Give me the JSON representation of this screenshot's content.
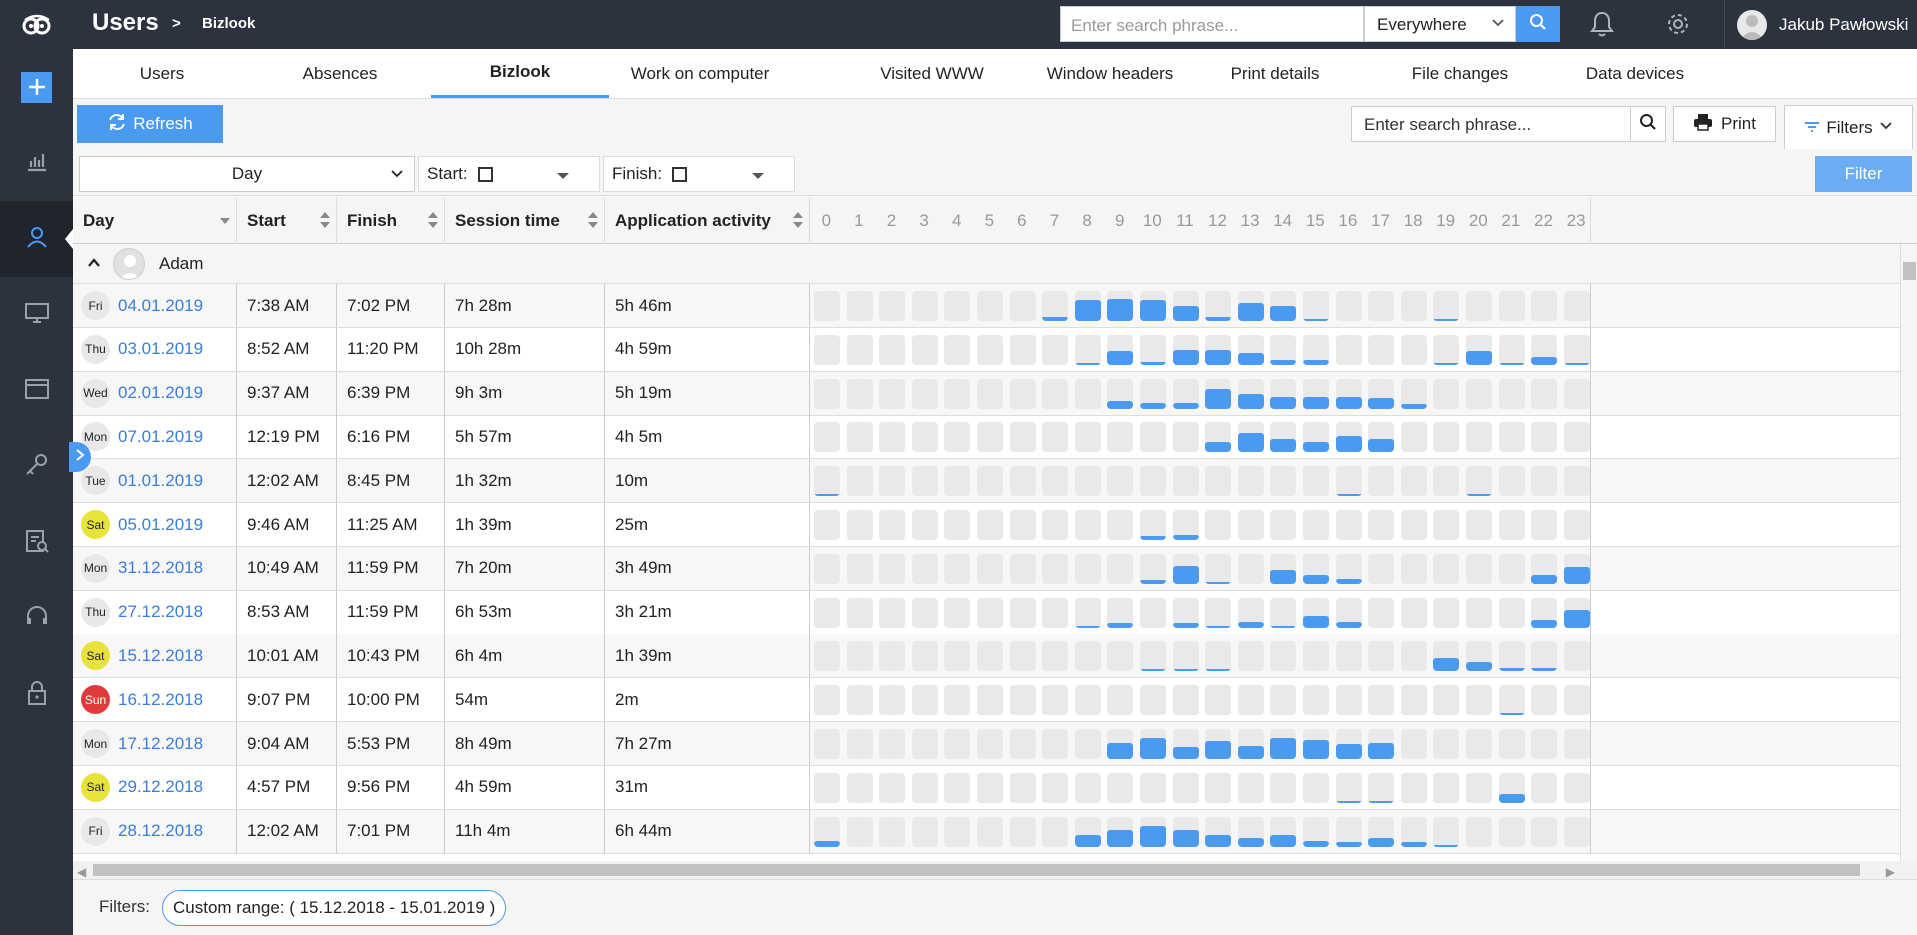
{
  "header": {
    "title": "Users",
    "breadcrumb_sep": ">",
    "breadcrumb": "Bizlook",
    "search_placeholder": "Enter search phrase...",
    "scope": "Everywhere",
    "user_name": "Jakub Pawłowski"
  },
  "sidebar": {
    "items": [
      "add-icon",
      "chart-icon",
      "user-icon",
      "monitor-icon",
      "window-icon",
      "key-icon",
      "clipboard-search-icon",
      "headset-icon",
      "lock-icon"
    ],
    "active": "user-icon"
  },
  "tabs": [
    "Users",
    "Absences",
    "Bizlook",
    "Work on computer",
    "Visited WWW",
    "Window headers",
    "Print details",
    "File changes",
    "Data devices"
  ],
  "active_tab": "Bizlook",
  "toolbar": {
    "refresh": "Refresh",
    "search_placeholder": "Enter search phrase...",
    "print": "Print",
    "filters": "Filters"
  },
  "filterbar": {
    "period": "Day",
    "start_label": "Start:",
    "finish_label": "Finish:",
    "filter": "Filter"
  },
  "grid": {
    "columns": [
      "Day",
      "Start",
      "Finish",
      "Session time",
      "Application activity"
    ],
    "hours": [
      "0",
      "1",
      "2",
      "3",
      "4",
      "5",
      "6",
      "7",
      "8",
      "9",
      "10",
      "11",
      "12",
      "13",
      "14",
      "15",
      "16",
      "17",
      "18",
      "19",
      "20",
      "21",
      "22",
      "23"
    ],
    "group": "Adam",
    "rows": [
      {
        "weekday": "Fri",
        "date": "04.01.2019",
        "start": "7:38 AM",
        "finish": "7:02 PM",
        "session": "7h 28m",
        "activity": "5h 46m",
        "weekend": "",
        "hours": [
          0,
          0,
          0,
          0,
          0,
          0,
          0,
          0.12,
          0.7,
          0.72,
          0.7,
          0.5,
          0.15,
          0.6,
          0.5,
          0.03,
          0,
          0,
          0,
          0.03,
          0,
          0,
          0,
          0
        ]
      },
      {
        "weekday": "Thu",
        "date": "03.01.2019",
        "start": "8:52 AM",
        "finish": "11:20 PM",
        "session": "10h 28m",
        "activity": "4h 59m",
        "weekend": "",
        "hours": [
          0,
          0,
          0,
          0,
          0,
          0,
          0,
          0,
          0.05,
          0.45,
          0.08,
          0.5,
          0.5,
          0.4,
          0.15,
          0.15,
          0,
          0,
          0,
          0.05,
          0.45,
          0.05,
          0.25,
          0.05
        ]
      },
      {
        "weekday": "Wed",
        "date": "02.01.2019",
        "start": "9:37 AM",
        "finish": "6:39 PM",
        "session": "9h 3m",
        "activity": "5h 19m",
        "weekend": "",
        "hours": [
          0,
          0,
          0,
          0,
          0,
          0,
          0,
          0,
          0,
          0.25,
          0.2,
          0.18,
          0.65,
          0.5,
          0.4,
          0.4,
          0.4,
          0.35,
          0.15,
          0,
          0,
          0,
          0,
          0
        ]
      },
      {
        "weekday": "Mon",
        "date": "07.01.2019",
        "start": "12:19 PM",
        "finish": "6:16 PM",
        "session": "5h 57m",
        "activity": "4h 5m",
        "weekend": "",
        "hours": [
          0,
          0,
          0,
          0,
          0,
          0,
          0,
          0,
          0,
          0,
          0,
          0,
          0.35,
          0.65,
          0.45,
          0.35,
          0.55,
          0.45,
          0,
          0,
          0,
          0,
          0,
          0
        ]
      },
      {
        "weekday": "Tue",
        "date": "01.01.2019",
        "start": "12:02 AM",
        "finish": "8:45 PM",
        "session": "1h 32m",
        "activity": "10m",
        "weekend": "",
        "hours": [
          0.05,
          0,
          0,
          0,
          0,
          0,
          0,
          0,
          0,
          0,
          0,
          0,
          0,
          0,
          0,
          0,
          0.02,
          0,
          0,
          0,
          0.03,
          0,
          0,
          0
        ]
      },
      {
        "weekday": "Sat",
        "date": "05.01.2019",
        "start": "9:46 AM",
        "finish": "11:25 AM",
        "session": "1h 39m",
        "activity": "25m",
        "weekend": "sat",
        "hours": [
          0,
          0,
          0,
          0,
          0,
          0,
          0,
          0,
          0,
          0,
          0.12,
          0.18,
          0,
          0,
          0,
          0,
          0,
          0,
          0,
          0,
          0,
          0,
          0,
          0
        ]
      },
      {
        "weekday": "Mon",
        "date": "31.12.2018",
        "start": "10:49 AM",
        "finish": "11:59 PM",
        "session": "7h 20m",
        "activity": "3h 49m",
        "weekend": "",
        "hours": [
          0,
          0,
          0,
          0,
          0,
          0,
          0,
          0,
          0,
          0,
          0.12,
          0.6,
          0.04,
          0,
          0.45,
          0.3,
          0.15,
          0,
          0,
          0,
          0,
          0,
          0.3,
          0.55
        ]
      },
      {
        "weekday": "Thu",
        "date": "27.12.2018",
        "start": "8:53 AM",
        "finish": "11:59 PM",
        "session": "6h 53m",
        "activity": "3h 21m",
        "weekend": "",
        "hours": [
          0,
          0,
          0,
          0,
          0,
          0,
          0,
          0,
          0.05,
          0.15,
          0,
          0.15,
          0.06,
          0.2,
          0.06,
          0.4,
          0.2,
          0,
          0,
          0,
          0,
          0,
          0.25,
          0.6
        ]
      },
      {
        "weekday": "Sat",
        "date": "15.12.2018",
        "start": "10:01 AM",
        "finish": "10:43 PM",
        "session": "6h 4m",
        "activity": "1h 39m",
        "weekend": "sat",
        "hours": [
          0,
          0,
          0,
          0,
          0,
          0,
          0,
          0,
          0,
          0,
          0.03,
          0.03,
          0.03,
          0,
          0,
          0,
          0,
          0,
          0,
          0.45,
          0.3,
          0.12,
          0.12,
          0
        ]
      },
      {
        "weekday": "Sun",
        "date": "16.12.2018",
        "start": "9:07 PM",
        "finish": "10:00 PM",
        "session": "54m",
        "activity": "2m",
        "weekend": "sun",
        "hours": [
          0,
          0,
          0,
          0,
          0,
          0,
          0,
          0,
          0,
          0,
          0,
          0,
          0,
          0,
          0,
          0,
          0,
          0,
          0,
          0,
          0,
          0.03,
          0,
          0
        ]
      },
      {
        "weekday": "Mon",
        "date": "17.12.2018",
        "start": "9:04 AM",
        "finish": "5:53 PM",
        "session": "8h 49m",
        "activity": "7h 27m",
        "weekend": "",
        "hours": [
          0,
          0,
          0,
          0,
          0,
          0,
          0,
          0,
          0,
          0.55,
          0.7,
          0.4,
          0.6,
          0.45,
          0.7,
          0.65,
          0.5,
          0.55,
          0,
          0,
          0,
          0,
          0,
          0
        ]
      },
      {
        "weekday": "Sat",
        "date": "29.12.2018",
        "start": "4:57 PM",
        "finish": "9:56 PM",
        "session": "4h 59m",
        "activity": "31m",
        "weekend": "sat",
        "hours": [
          0,
          0,
          0,
          0,
          0,
          0,
          0,
          0,
          0,
          0,
          0,
          0,
          0,
          0,
          0,
          0,
          0.03,
          0.03,
          0,
          0,
          0,
          0.3,
          0,
          0
        ]
      },
      {
        "weekday": "Fri",
        "date": "28.12.2018",
        "start": "12:02 AM",
        "finish": "7:01 PM",
        "session": "11h 4m",
        "activity": "6h 44m",
        "weekend": "",
        "hours": [
          0.2,
          0,
          0,
          0,
          0,
          0,
          0,
          0,
          0.4,
          0.55,
          0.7,
          0.55,
          0.4,
          0.3,
          0.4,
          0.2,
          0.15,
          0.3,
          0.15,
          0.03,
          0,
          0,
          0,
          0
        ]
      }
    ]
  },
  "footer": {
    "filters_label": "Filters:",
    "chip": "Custom range: ( 15.12.2018 - 15.01.2019 )"
  },
  "colors": {
    "accent": "#4b9af2",
    "sidebar": "#2d333e",
    "saturday": "#e8e33a",
    "sunday": "#e03a3a",
    "empty_cell": "#e9e9e9"
  }
}
